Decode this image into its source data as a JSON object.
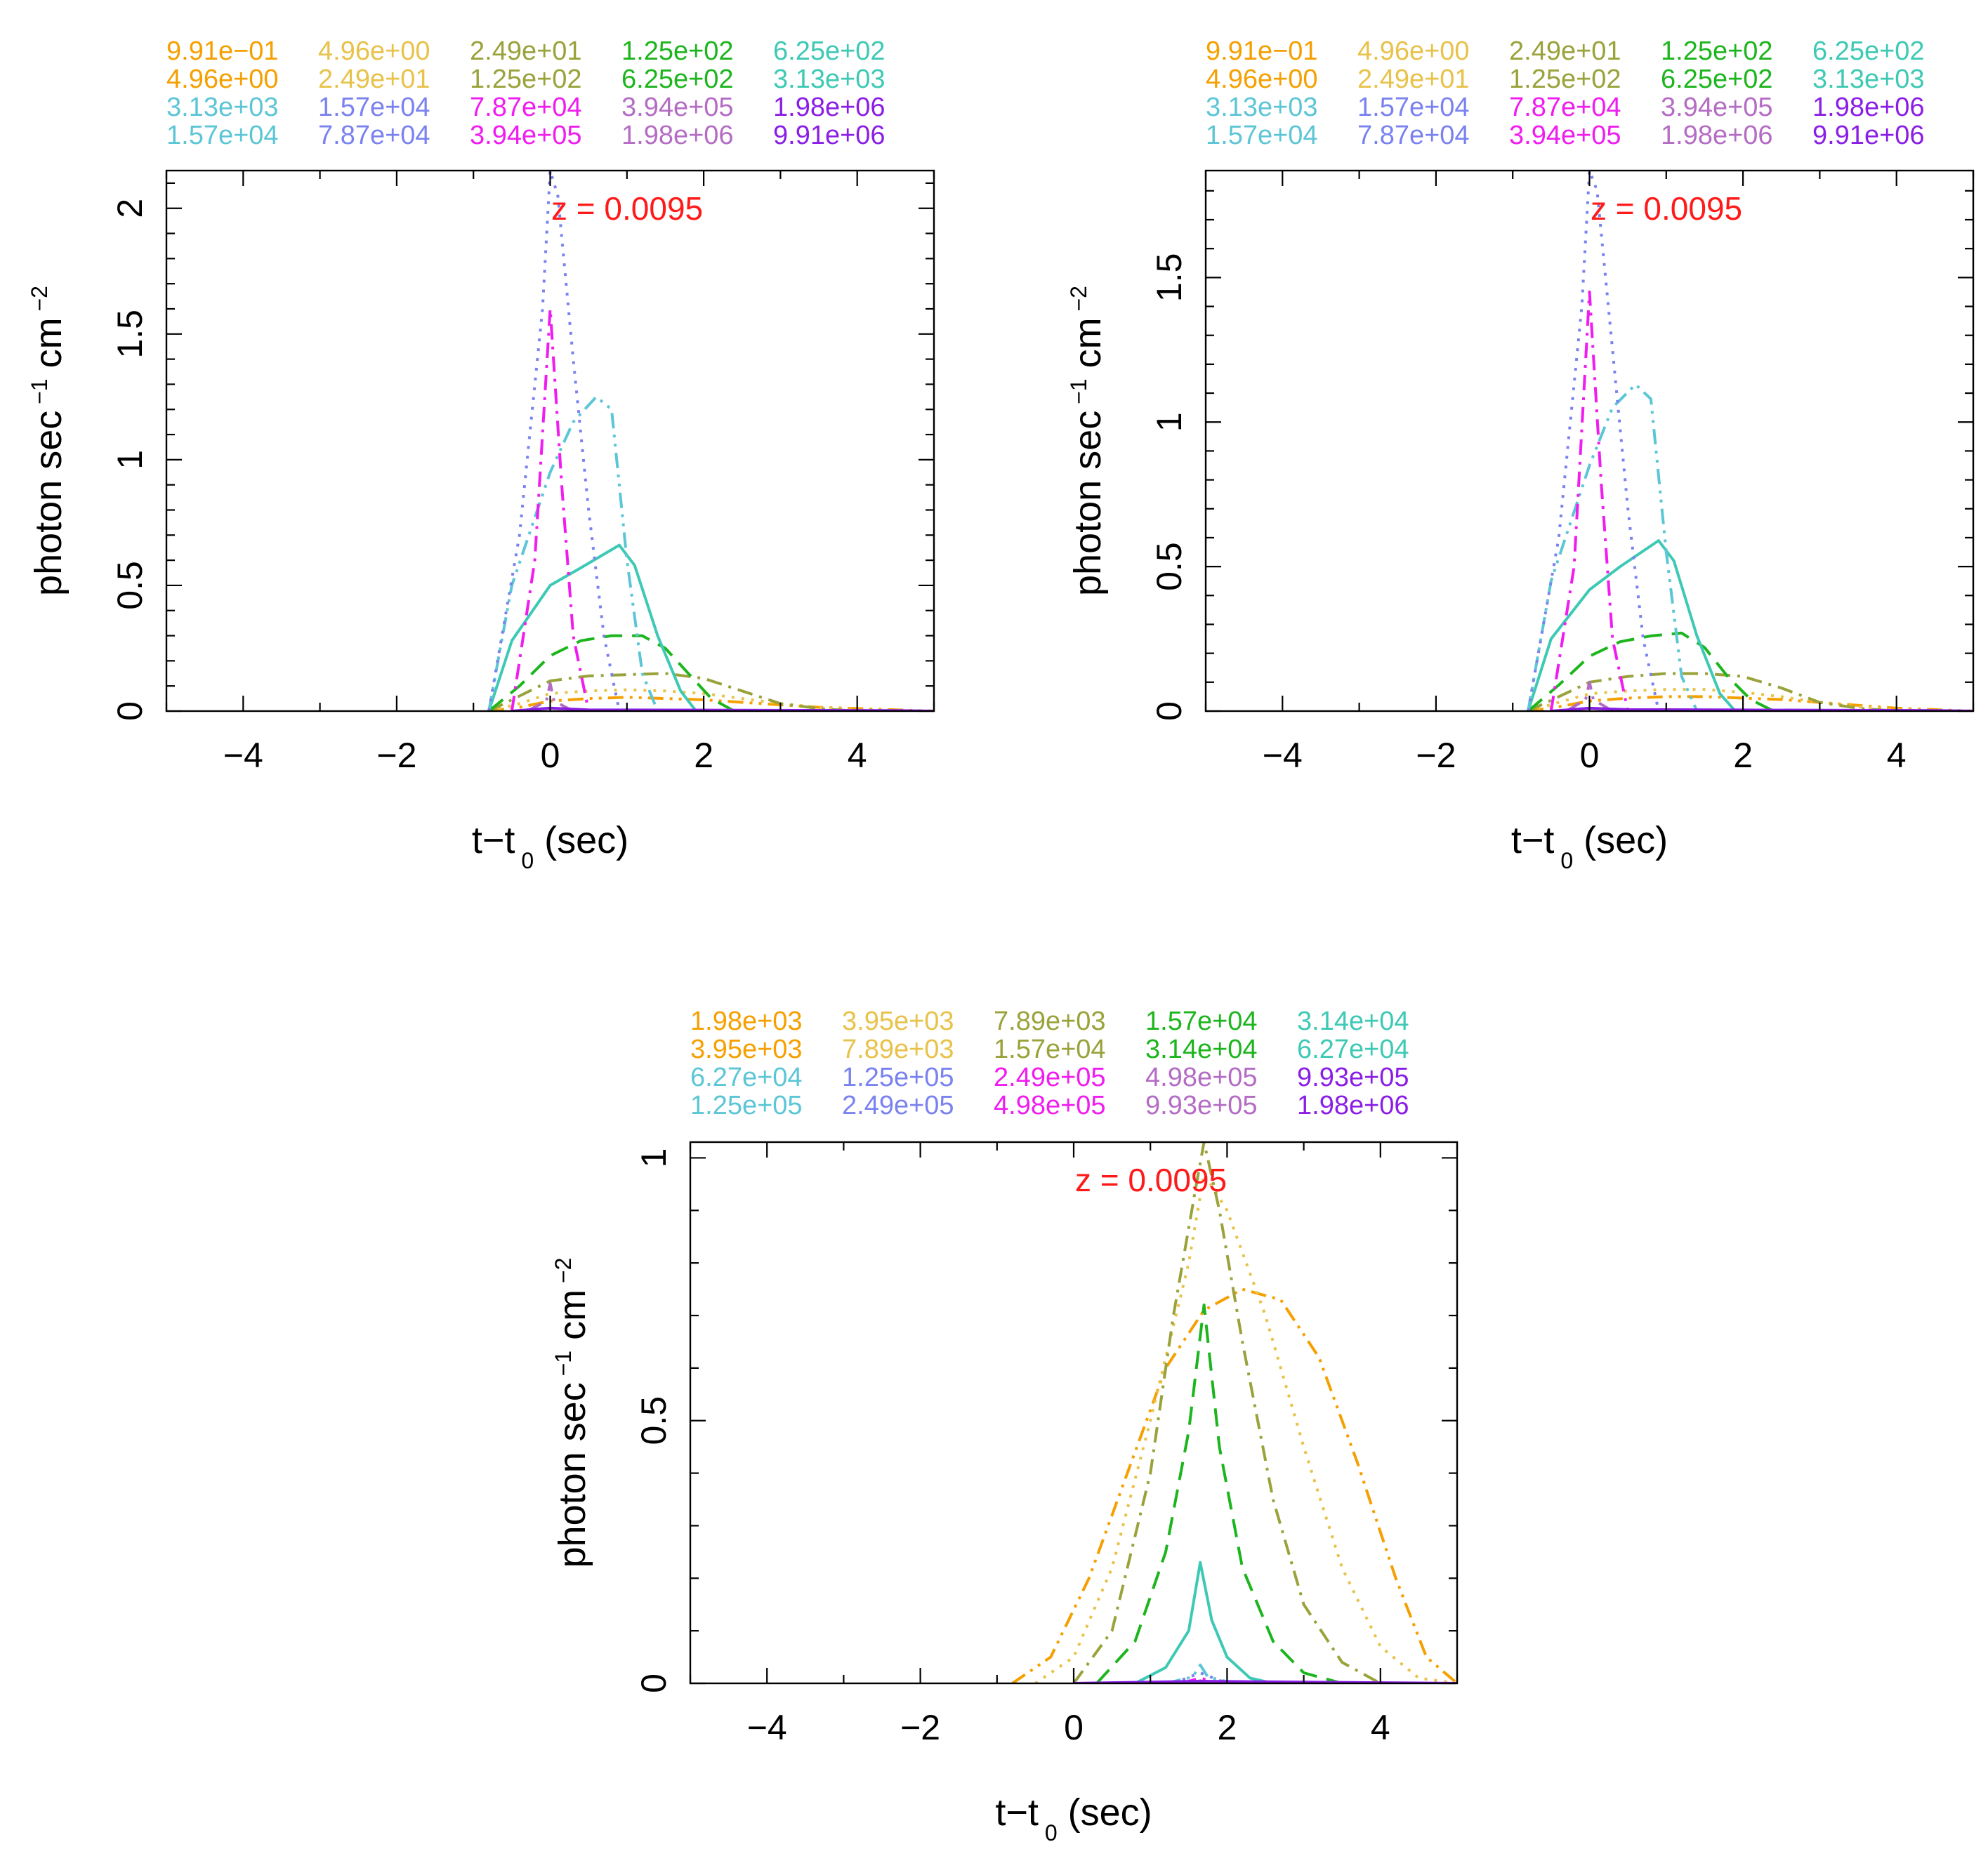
{
  "figure": {
    "colors": {
      "orange": "#f5a000",
      "gold": "#e8c24a",
      "olive": "#9aa23a",
      "green": "#1db51d",
      "teal": "#3ec9b5",
      "cyan": "#5cc6d6",
      "blue": "#7a82f0",
      "magenta": "#f01cf0",
      "mauve": "#b46cc4",
      "purple": "#8a1ee6",
      "annotation": "#ff1a1a"
    }
  },
  "chart_data": [
    {
      "id": "top-left",
      "type": "line",
      "title": "",
      "annotation": "z = 0.0095",
      "xlabel": "t−t",
      "xlabel_sub": "0",
      "xlabel_tail": " (sec)",
      "ylabel": "photon sec",
      "ylabel_sup1": "−1",
      "ylabel_mid": " cm",
      "ylabel_sup2": "−2",
      "xlim": [
        -5,
        5
      ],
      "ylim": [
        0,
        2.15
      ],
      "xticks": [
        -4,
        -2,
        0,
        2,
        4
      ],
      "xticklabels": [
        "−4",
        "−2",
        "0",
        "2",
        "4"
      ],
      "yticks": [
        0,
        0.5,
        1,
        1.5,
        2
      ],
      "yticklabels": [
        "0",
        "0.5",
        "1",
        "1.5",
        "2"
      ],
      "legend": [
        [
          "9.91e−01",
          "4.96e+00",
          "2.49e+01",
          "1.25e+02",
          "6.25e+02"
        ],
        [
          "4.96e+00",
          "2.49e+01",
          "1.25e+02",
          "6.25e+02",
          "3.13e+03"
        ],
        [
          "3.13e+03",
          "1.57e+04",
          "7.87e+04",
          "3.94e+05",
          "1.98e+06"
        ],
        [
          "1.57e+04",
          "7.87e+04",
          "3.94e+05",
          "1.98e+06",
          "9.91e+06"
        ]
      ],
      "legend_colors": [
        [
          "orange",
          "gold",
          "olive",
          "green",
          "teal"
        ],
        [
          "orange",
          "gold",
          "olive",
          "green",
          "teal"
        ],
        [
          "cyan",
          "blue",
          "magenta",
          "mauve",
          "purple"
        ],
        [
          "cyan",
          "blue",
          "magenta",
          "mauve",
          "purple"
        ]
      ],
      "series": [
        {
          "name": "9.91e−01 – 4.96e+00",
          "color": "orange",
          "dash": "dashdotdot",
          "x": [
            -0.8,
            -0.4,
            0,
            0.5,
            1,
            1.5,
            2,
            2.5,
            3,
            3.5,
            4,
            4.5,
            5
          ],
          "y": [
            0,
            0.015,
            0.04,
            0.05,
            0.055,
            0.05,
            0.045,
            0.035,
            0.025,
            0.015,
            0.01,
            0.005,
            0
          ]
        },
        {
          "name": "4.96e+00 – 2.49e+01",
          "color": "gold",
          "dash": "dotted",
          "x": [
            -0.8,
            -0.4,
            0,
            0.5,
            1,
            1.5,
            2,
            2.5,
            3,
            3.5,
            4,
            5
          ],
          "y": [
            0,
            0.03,
            0.07,
            0.08,
            0.085,
            0.08,
            0.07,
            0.05,
            0.03,
            0.015,
            0.005,
            0
          ]
        },
        {
          "name": "2.49e+01 – 1.25e+02",
          "color": "olive",
          "dash": "dashdot",
          "x": [
            -0.8,
            -0.4,
            0,
            0.5,
            1,
            1.5,
            2,
            2.5,
            3,
            3.5,
            4
          ],
          "y": [
            0,
            0.06,
            0.12,
            0.14,
            0.145,
            0.15,
            0.13,
            0.08,
            0.03,
            0.01,
            0
          ]
        },
        {
          "name": "1.25e+02 – 6.25e+02",
          "color": "green",
          "dash": "dashed",
          "x": [
            -0.8,
            -0.4,
            0,
            0.4,
            0.8,
            1.2,
            1.5,
            1.8,
            2.1,
            2.4
          ],
          "y": [
            0,
            0.1,
            0.22,
            0.28,
            0.3,
            0.3,
            0.25,
            0.15,
            0.05,
            0
          ]
        },
        {
          "name": "6.25e+02 – 3.13e+03",
          "color": "teal",
          "dash": "solid",
          "x": [
            -0.8,
            -0.5,
            0,
            0.4,
            0.9,
            1.1,
            1.4,
            1.7,
            1.9
          ],
          "y": [
            0,
            0.28,
            0.5,
            0.57,
            0.66,
            0.58,
            0.3,
            0.08,
            0
          ]
        },
        {
          "name": "3.13e+03 – 1.57e+04",
          "color": "cyan",
          "dash": "dashdotdot",
          "x": [
            -0.8,
            -0.5,
            0,
            0.3,
            0.6,
            0.8,
            1.0,
            1.2,
            1.4
          ],
          "y": [
            0,
            0.5,
            0.95,
            1.15,
            1.25,
            1.2,
            0.6,
            0.15,
            0
          ]
        },
        {
          "name": "1.57e+04 – 7.87e+04",
          "color": "blue",
          "dash": "dotted",
          "x": [
            -0.8,
            -0.4,
            -0.1,
            0,
            0.1,
            0.3,
            0.5,
            0.7,
            0.9
          ],
          "y": [
            0,
            0.7,
            1.6,
            2.15,
            2.05,
            1.4,
            0.8,
            0.3,
            0
          ]
        },
        {
          "name": "7.87e+04 – 3.94e+05",
          "color": "magenta",
          "dash": "dashdot",
          "x": [
            -0.5,
            -0.2,
            0,
            0.15,
            0.3,
            0.5
          ],
          "y": [
            0,
            0.6,
            1.6,
            0.9,
            0.3,
            0
          ]
        },
        {
          "name": "3.94e+05 – 1.98e+06",
          "color": "mauve",
          "dash": "dashdot",
          "x": [
            -0.3,
            -0.05,
            0,
            0.05,
            0.3
          ],
          "y": [
            0,
            0.04,
            0.11,
            0.04,
            0
          ]
        },
        {
          "name": "1.98e+06 – 9.91e+06",
          "color": "purple",
          "dash": "solid",
          "x": [
            -0.5,
            0,
            0.5,
            4.5,
            5
          ],
          "y": [
            0,
            0.012,
            0.005,
            0.002,
            0
          ]
        }
      ]
    },
    {
      "id": "top-right",
      "type": "line",
      "title": "",
      "annotation": "z = 0.0095",
      "xlabel": "t−t",
      "xlabel_sub": "0",
      "xlabel_tail": " (sec)",
      "ylabel": "photon sec",
      "ylabel_sup1": "−1",
      "ylabel_mid": " cm",
      "ylabel_sup2": "−2",
      "xlim": [
        -5,
        5
      ],
      "ylim": [
        0,
        1.87
      ],
      "xticks": [
        -4,
        -2,
        0,
        2,
        4
      ],
      "xticklabels": [
        "−4",
        "−2",
        "0",
        "2",
        "4"
      ],
      "yticks": [
        0,
        0.5,
        1,
        1.5
      ],
      "yticklabels": [
        "0",
        "0.5",
        "1",
        "1.5"
      ],
      "legend": [
        [
          "9.91e−01",
          "4.96e+00",
          "2.49e+01",
          "1.25e+02",
          "6.25e+02"
        ],
        [
          "4.96e+00",
          "2.49e+01",
          "1.25e+02",
          "6.25e+02",
          "3.13e+03"
        ],
        [
          "3.13e+03",
          "1.57e+04",
          "7.87e+04",
          "3.94e+05",
          "1.98e+06"
        ],
        [
          "1.57e+04",
          "7.87e+04",
          "3.94e+05",
          "1.98e+06",
          "9.91e+06"
        ]
      ],
      "legend_colors": [
        [
          "orange",
          "gold",
          "olive",
          "green",
          "teal"
        ],
        [
          "orange",
          "gold",
          "olive",
          "green",
          "teal"
        ],
        [
          "cyan",
          "blue",
          "magenta",
          "mauve",
          "purple"
        ],
        [
          "cyan",
          "blue",
          "magenta",
          "mauve",
          "purple"
        ]
      ],
      "series": [
        {
          "name": "9.91e−01 – 4.96e+00",
          "color": "orange",
          "dash": "dashdotdot",
          "x": [
            -0.8,
            -0.4,
            0,
            0.5,
            1,
            1.5,
            2,
            2.5,
            3,
            3.5,
            4,
            4.5,
            5
          ],
          "y": [
            0,
            0.015,
            0.035,
            0.045,
            0.05,
            0.05,
            0.045,
            0.04,
            0.03,
            0.02,
            0.01,
            0.005,
            0
          ]
        },
        {
          "name": "4.96e+00 – 2.49e+01",
          "color": "gold",
          "dash": "dotted",
          "x": [
            -0.8,
            -0.4,
            0,
            0.5,
            1,
            1.5,
            2,
            2.5,
            3,
            3.5,
            4,
            5
          ],
          "y": [
            0,
            0.03,
            0.06,
            0.07,
            0.075,
            0.075,
            0.065,
            0.05,
            0.03,
            0.015,
            0.005,
            0
          ]
        },
        {
          "name": "2.49e+01 – 1.25e+02",
          "color": "olive",
          "dash": "dashdot",
          "x": [
            -0.8,
            -0.4,
            0,
            0.5,
            1,
            1.5,
            2,
            2.5,
            3,
            3.5,
            4
          ],
          "y": [
            0,
            0.05,
            0.1,
            0.12,
            0.13,
            0.13,
            0.12,
            0.08,
            0.03,
            0.01,
            0
          ]
        },
        {
          "name": "1.25e+02 – 6.25e+02",
          "color": "green",
          "dash": "dashed",
          "x": [
            -0.8,
            -0.4,
            0,
            0.4,
            0.8,
            1.2,
            1.5,
            1.8,
            2.1,
            2.4
          ],
          "y": [
            0,
            0.09,
            0.19,
            0.24,
            0.26,
            0.27,
            0.22,
            0.12,
            0.04,
            0
          ]
        },
        {
          "name": "6.25e+02 – 3.13e+03",
          "color": "teal",
          "dash": "solid",
          "x": [
            -0.8,
            -0.5,
            0,
            0.4,
            0.9,
            1.1,
            1.4,
            1.7,
            1.9
          ],
          "y": [
            0,
            0.25,
            0.42,
            0.5,
            0.59,
            0.52,
            0.26,
            0.06,
            0
          ]
        },
        {
          "name": "3.13e+03 – 1.57e+04",
          "color": "cyan",
          "dash": "dashdotdot",
          "x": [
            -0.8,
            -0.5,
            0,
            0.3,
            0.6,
            0.8,
            1.0,
            1.2,
            1.4
          ],
          "y": [
            0,
            0.45,
            0.85,
            1.05,
            1.13,
            1.08,
            0.55,
            0.12,
            0
          ]
        },
        {
          "name": "1.57e+04 – 7.87e+04",
          "color": "blue",
          "dash": "dotted",
          "x": [
            -0.8,
            -0.4,
            -0.1,
            0,
            0.1,
            0.3,
            0.5,
            0.7,
            0.9
          ],
          "y": [
            0,
            0.6,
            1.4,
            1.87,
            1.8,
            1.25,
            0.7,
            0.25,
            0
          ]
        },
        {
          "name": "7.87e+04 – 3.94e+05",
          "color": "magenta",
          "dash": "dashdot",
          "x": [
            -0.5,
            -0.2,
            0,
            0.15,
            0.3,
            0.5
          ],
          "y": [
            0,
            0.5,
            1.45,
            0.8,
            0.25,
            0
          ]
        },
        {
          "name": "3.94e+05 – 1.98e+06",
          "color": "mauve",
          "dash": "dashdot",
          "x": [
            -0.3,
            -0.05,
            0,
            0.05,
            0.3
          ],
          "y": [
            0,
            0.04,
            0.1,
            0.04,
            0
          ]
        },
        {
          "name": "1.98e+06 – 9.91e+06",
          "color": "purple",
          "dash": "solid",
          "x": [
            -0.5,
            0,
            0.5,
            4.5,
            5
          ],
          "y": [
            0,
            0.01,
            0.005,
            0.002,
            0
          ]
        }
      ]
    },
    {
      "id": "bottom",
      "type": "line",
      "title": "",
      "annotation": "z = 0.0095",
      "xlabel": "t−t",
      "xlabel_sub": "0",
      "xlabel_tail": " (sec)",
      "ylabel": "photon sec",
      "ylabel_sup1": "−1",
      "ylabel_mid": " cm",
      "ylabel_sup2": "−2",
      "xlim": [
        -5,
        5
      ],
      "ylim": [
        0,
        1.03
      ],
      "xticks": [
        -4,
        -2,
        0,
        2,
        4
      ],
      "xticklabels": [
        "−4",
        "−2",
        "0",
        "2",
        "4"
      ],
      "yticks": [
        0,
        0.5,
        1
      ],
      "yticklabels": [
        "0",
        "0.5",
        "1"
      ],
      "legend": [
        [
          "1.98e+03",
          "3.95e+03",
          "7.89e+03",
          "1.57e+04",
          "3.14e+04"
        ],
        [
          "3.95e+03",
          "7.89e+03",
          "1.57e+04",
          "3.14e+04",
          "6.27e+04"
        ],
        [
          "6.27e+04",
          "1.25e+05",
          "2.49e+05",
          "4.98e+05",
          "9.93e+05"
        ],
        [
          "1.25e+05",
          "2.49e+05",
          "4.98e+05",
          "9.93e+05",
          "1.98e+06"
        ]
      ],
      "legend_colors": [
        [
          "orange",
          "gold",
          "olive",
          "green",
          "teal"
        ],
        [
          "orange",
          "gold",
          "olive",
          "green",
          "teal"
        ],
        [
          "cyan",
          "blue",
          "magenta",
          "mauve",
          "purple"
        ],
        [
          "cyan",
          "blue",
          "magenta",
          "mauve",
          "purple"
        ]
      ],
      "series": [
        {
          "name": "1.98e+03 – 3.95e+03",
          "color": "orange",
          "dash": "dashdotdot",
          "x": [
            -0.8,
            -0.3,
            0.2,
            0.7,
            1.2,
            1.7,
            2.2,
            2.7,
            3.2,
            3.7,
            4.2,
            4.6,
            5
          ],
          "y": [
            0,
            0.05,
            0.2,
            0.4,
            0.6,
            0.71,
            0.75,
            0.73,
            0.62,
            0.42,
            0.2,
            0.05,
            0
          ]
        },
        {
          "name": "3.95e+03 – 7.89e+03",
          "color": "gold",
          "dash": "dotted",
          "x": [
            -0.5,
            0,
            0.5,
            1,
            1.5,
            1.7,
            2,
            2.5,
            3,
            3.5,
            4,
            4.5,
            5
          ],
          "y": [
            0,
            0.05,
            0.22,
            0.5,
            0.8,
            0.97,
            0.9,
            0.7,
            0.45,
            0.22,
            0.07,
            0.01,
            0
          ]
        },
        {
          "name": "7.89e+03 – 1.57e+04",
          "color": "olive",
          "dash": "dashdot",
          "x": [
            0,
            0.5,
            1,
            1.3,
            1.6,
            1.7,
            1.9,
            2.2,
            2.6,
            3,
            3.5,
            4
          ],
          "y": [
            0,
            0.1,
            0.4,
            0.7,
            0.95,
            1.03,
            0.9,
            0.65,
            0.35,
            0.15,
            0.04,
            0
          ]
        },
        {
          "name": "1.57e+04 – 3.14e+04",
          "color": "green",
          "dash": "dashed",
          "x": [
            0.3,
            0.8,
            1.2,
            1.5,
            1.7,
            1.9,
            2.2,
            2.6,
            3,
            3.5
          ],
          "y": [
            0,
            0.08,
            0.25,
            0.48,
            0.72,
            0.45,
            0.22,
            0.08,
            0.02,
            0
          ]
        },
        {
          "name": "3.14e+04 – 6.27e+04",
          "color": "teal",
          "dash": "solid",
          "x": [
            0.8,
            1.2,
            1.5,
            1.65,
            1.8,
            2.0,
            2.3,
            2.6
          ],
          "y": [
            0,
            0.03,
            0.1,
            0.23,
            0.12,
            0.05,
            0.01,
            0
          ]
        },
        {
          "name": "6.27e+04 – 1.25e+05",
          "color": "cyan",
          "dash": "dashdotdot",
          "x": [
            1.2,
            1.55,
            1.65,
            1.75,
            2.1
          ],
          "y": [
            0,
            0.012,
            0.035,
            0.012,
            0
          ]
        },
        {
          "name": "1.25e+05 – 2.49e+05",
          "color": "blue",
          "dash": "dotted",
          "x": [
            1.3,
            1.65,
            2.0
          ],
          "y": [
            0,
            0.02,
            0
          ]
        },
        {
          "name": "2.49e+05 – 4.98e+05",
          "color": "magenta",
          "dash": "dashdot",
          "x": [
            1.4,
            1.65,
            1.9
          ],
          "y": [
            0,
            0.01,
            0
          ]
        },
        {
          "name": "4.98e+05 – 9.93e+05",
          "color": "mauve",
          "dash": "dashdot",
          "x": [
            1.5,
            1.65,
            1.8
          ],
          "y": [
            0,
            0.005,
            0
          ]
        },
        {
          "name": "9.93e+05 – 1.98e+06",
          "color": "purple",
          "dash": "solid",
          "x": [
            0,
            1.65,
            5
          ],
          "y": [
            0,
            0.004,
            0
          ]
        }
      ]
    }
  ]
}
